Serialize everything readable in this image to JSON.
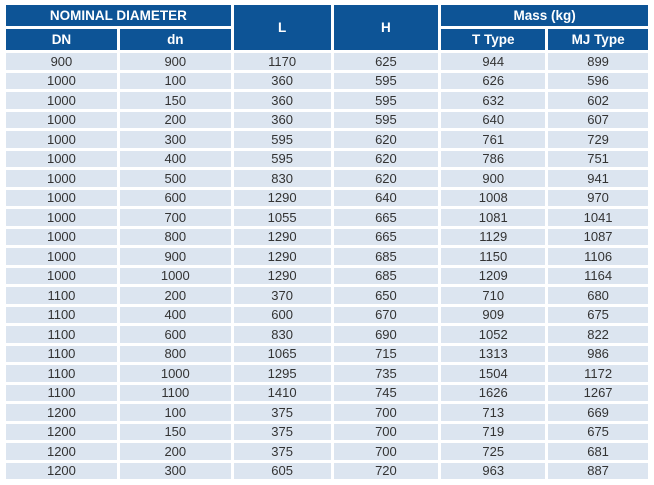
{
  "table": {
    "header": {
      "nominal_diameter": "NOMINAL DIAMETER",
      "dn": "DN",
      "dn_small": "dn",
      "l": "L",
      "h": "H",
      "mass": "Mass (kg)",
      "t_type": "T Type",
      "mj_type": "MJ Type"
    },
    "columns": [
      "DN",
      "dn",
      "L",
      "H",
      "T Type",
      "MJ Type"
    ],
    "rows": [
      [
        "900",
        "900",
        "1170",
        "625",
        "944",
        "899"
      ],
      [
        "1000",
        "100",
        "360",
        "595",
        "626",
        "596"
      ],
      [
        "1000",
        "150",
        "360",
        "595",
        "632",
        "602"
      ],
      [
        "1000",
        "200",
        "360",
        "595",
        "640",
        "607"
      ],
      [
        "1000",
        "300",
        "595",
        "620",
        "761",
        "729"
      ],
      [
        "1000",
        "400",
        "595",
        "620",
        "786",
        "751"
      ],
      [
        "1000",
        "500",
        "830",
        "620",
        "900",
        "941"
      ],
      [
        "1000",
        "600",
        "1290",
        "640",
        "1008",
        "970"
      ],
      [
        "1000",
        "700",
        "1055",
        "665",
        "1081",
        "1041"
      ],
      [
        "1000",
        "800",
        "1290",
        "665",
        "1129",
        "1087"
      ],
      [
        "1000",
        "900",
        "1290",
        "685",
        "1150",
        "1106"
      ],
      [
        "1000",
        "1000",
        "1290",
        "685",
        "1209",
        "1164"
      ],
      [
        "1100",
        "200",
        "370",
        "650",
        "710",
        "680"
      ],
      [
        "1100",
        "400",
        "600",
        "670",
        "909",
        "675"
      ],
      [
        "1100",
        "600",
        "830",
        "690",
        "1052",
        "822"
      ],
      [
        "1100",
        "800",
        "1065",
        "715",
        "1313",
        "986"
      ],
      [
        "1100",
        "1000",
        "1295",
        "735",
        "1504",
        "1172"
      ],
      [
        "1100",
        "1100",
        "1410",
        "745",
        "1626",
        "1267"
      ],
      [
        "1200",
        "100",
        "375",
        "700",
        "713",
        "669"
      ],
      [
        "1200",
        "150",
        "375",
        "700",
        "719",
        "675"
      ],
      [
        "1200",
        "200",
        "375",
        "700",
        "725",
        "681"
      ],
      [
        "1200",
        "300",
        "605",
        "720",
        "963",
        "887"
      ]
    ]
  },
  "colors": {
    "header_bg": "#0D5496",
    "row_bg": "#DCE5F0",
    "header_text": "#FFFFFF",
    "cell_text": "#333333",
    "gap": "#FFFFFF"
  }
}
